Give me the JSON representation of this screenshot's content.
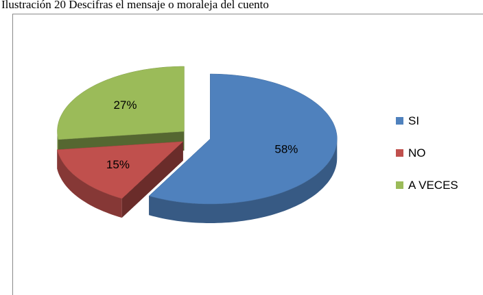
{
  "chart_data": {
    "type": "pie",
    "title": "Ilustración 20 Descifras el mensaje o moraleja del cuento",
    "categories": [
      "SI",
      "NO",
      "A VECES"
    ],
    "values": [
      58,
      15,
      27
    ],
    "value_labels": [
      "58%",
      "15%",
      "27%"
    ],
    "colors": [
      "#4f81bd",
      "#c0504d",
      "#9bbb59"
    ],
    "legend": "right"
  }
}
